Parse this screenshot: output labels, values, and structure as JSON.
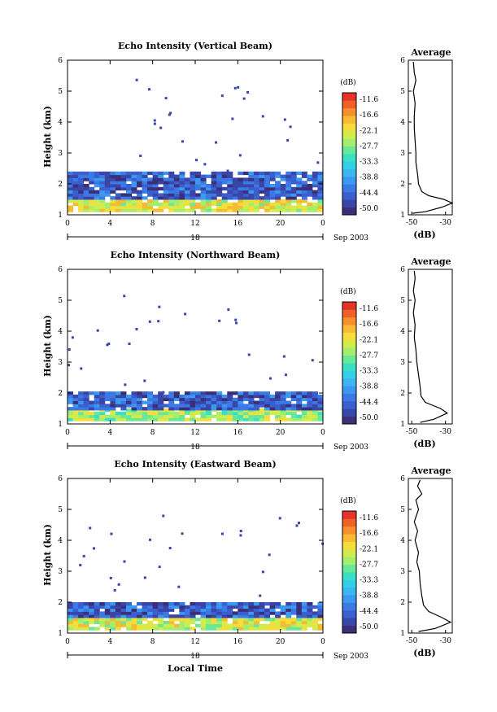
{
  "chart_data": [
    {
      "type": "heatmap",
      "title": "Echo Intensity (Vertical Beam)",
      "ylabel": "Height (km)",
      "xlabel": "",
      "xlim": [
        0,
        24
      ],
      "ylim": [
        1,
        6
      ],
      "x_ticks": [
        "0",
        "4",
        "8",
        "12",
        "16",
        "20",
        "0"
      ],
      "y_ticks": [
        "1",
        "2",
        "3",
        "4",
        "5",
        "6"
      ],
      "date_marker": "18",
      "date_label": "Sep 2003",
      "colorbar_unit": "(dB)",
      "colorbar_ticks": [
        "-11.6",
        "-16.6",
        "-22.1",
        "-27.7",
        "-33.3",
        "-38.8",
        "-44.4",
        "-50.0"
      ],
      "echo_layers": [
        {
          "from_km": 1.1,
          "to_km": 1.5,
          "level_db": -24
        },
        {
          "from_km": 1.5,
          "to_km": 2.4,
          "level_db": -44
        }
      ],
      "average_profile": {
        "title": "Average",
        "xlabel": "(dB)",
        "x_ticks": [
          "-50",
          "-30"
        ],
        "y_ticks": [
          "1",
          "2",
          "3",
          "4",
          "5",
          "6"
        ],
        "xlim": [
          -52,
          -26
        ],
        "points": [
          [
            -49.5,
            1.05
          ],
          [
            -42,
            1.1
          ],
          [
            -32,
            1.25
          ],
          [
            -26,
            1.38
          ],
          [
            -31,
            1.5
          ],
          [
            -40,
            1.62
          ],
          [
            -44,
            1.75
          ],
          [
            -46,
            2.0
          ],
          [
            -46.5,
            2.3
          ],
          [
            -47.5,
            2.7
          ],
          [
            -47.5,
            3.0
          ],
          [
            -48,
            3.4
          ],
          [
            -48.5,
            3.8
          ],
          [
            -48.5,
            4.2
          ],
          [
            -48,
            4.6
          ],
          [
            -49,
            5.0
          ],
          [
            -47.5,
            5.35
          ],
          [
            -48.5,
            5.6
          ],
          [
            -49,
            5.95
          ]
        ]
      }
    },
    {
      "type": "heatmap",
      "title": "Echo Intensity (Northward Beam)",
      "ylabel": "Height (km)",
      "xlabel": "",
      "xlim": [
        0,
        24
      ],
      "ylim": [
        1,
        6
      ],
      "x_ticks": [
        "0",
        "4",
        "8",
        "12",
        "16",
        "20",
        "0"
      ],
      "y_ticks": [
        "1",
        "2",
        "3",
        "4",
        "5",
        "6"
      ],
      "date_marker": "18",
      "date_label": "Sep 2003",
      "colorbar_unit": "(dB)",
      "colorbar_ticks": [
        "-11.6",
        "-16.6",
        "-22.1",
        "-27.7",
        "-33.3",
        "-38.8",
        "-44.4",
        "-50.0"
      ],
      "echo_layers": [
        {
          "from_km": 1.1,
          "to_km": 1.45,
          "level_db": -27
        },
        {
          "from_km": 1.45,
          "to_km": 2.0,
          "level_db": -44
        }
      ],
      "average_profile": {
        "title": "Average",
        "xlabel": "(dB)",
        "x_ticks": [
          "-50",
          "-30"
        ],
        "y_ticks": [
          "1",
          "2",
          "3",
          "4",
          "5",
          "6"
        ],
        "xlim": [
          -52,
          -26
        ],
        "points": [
          [
            -45,
            1.05
          ],
          [
            -37,
            1.15
          ],
          [
            -29,
            1.35
          ],
          [
            -33,
            1.5
          ],
          [
            -42,
            1.7
          ],
          [
            -44.5,
            1.9
          ],
          [
            -45,
            2.2
          ],
          [
            -46,
            2.6
          ],
          [
            -47,
            3.0
          ],
          [
            -47.5,
            3.4
          ],
          [
            -48.5,
            3.8
          ],
          [
            -48,
            4.2
          ],
          [
            -49,
            4.6
          ],
          [
            -48,
            5.0
          ],
          [
            -49,
            5.3
          ],
          [
            -48,
            5.7
          ],
          [
            -48.5,
            5.95
          ]
        ]
      }
    },
    {
      "type": "heatmap",
      "title": "Echo Intensity (Eastward Beam)",
      "ylabel": "Height (km)",
      "xlabel": "Local Time",
      "xlim": [
        0,
        24
      ],
      "ylim": [
        1,
        6
      ],
      "x_ticks": [
        "0",
        "4",
        "8",
        "12",
        "16",
        "20",
        "0"
      ],
      "y_ticks": [
        "1",
        "2",
        "3",
        "4",
        "5",
        "6"
      ],
      "date_marker": "18",
      "date_label": "Sep 2003",
      "colorbar_unit": "(dB)",
      "colorbar_ticks": [
        "-11.6",
        "-16.6",
        "-22.1",
        "-27.7",
        "-33.3",
        "-38.8",
        "-44.4",
        "-50.0"
      ],
      "echo_layers": [
        {
          "from_km": 1.1,
          "to_km": 1.5,
          "level_db": -25
        },
        {
          "from_km": 1.5,
          "to_km": 2.0,
          "level_db": -44
        }
      ],
      "average_profile": {
        "title": "Average",
        "xlabel": "(dB)",
        "x_ticks": [
          "-50",
          "-30"
        ],
        "y_ticks": [
          "1",
          "2",
          "3",
          "4",
          "5",
          "6"
        ],
        "xlim": [
          -52,
          -26
        ],
        "points": [
          [
            -46,
            1.05
          ],
          [
            -36,
            1.15
          ],
          [
            -27,
            1.35
          ],
          [
            -32,
            1.5
          ],
          [
            -40,
            1.7
          ],
          [
            -43,
            1.9
          ],
          [
            -44,
            2.2
          ],
          [
            -45,
            2.6
          ],
          [
            -45.5,
            3.0
          ],
          [
            -47,
            3.3
          ],
          [
            -46,
            3.6
          ],
          [
            -48,
            4.0
          ],
          [
            -46.5,
            4.3
          ],
          [
            -48.5,
            4.6
          ],
          [
            -46,
            5.0
          ],
          [
            -47.5,
            5.3
          ],
          [
            -44,
            5.5
          ],
          [
            -46.5,
            5.75
          ],
          [
            -45,
            5.95
          ]
        ]
      }
    }
  ]
}
